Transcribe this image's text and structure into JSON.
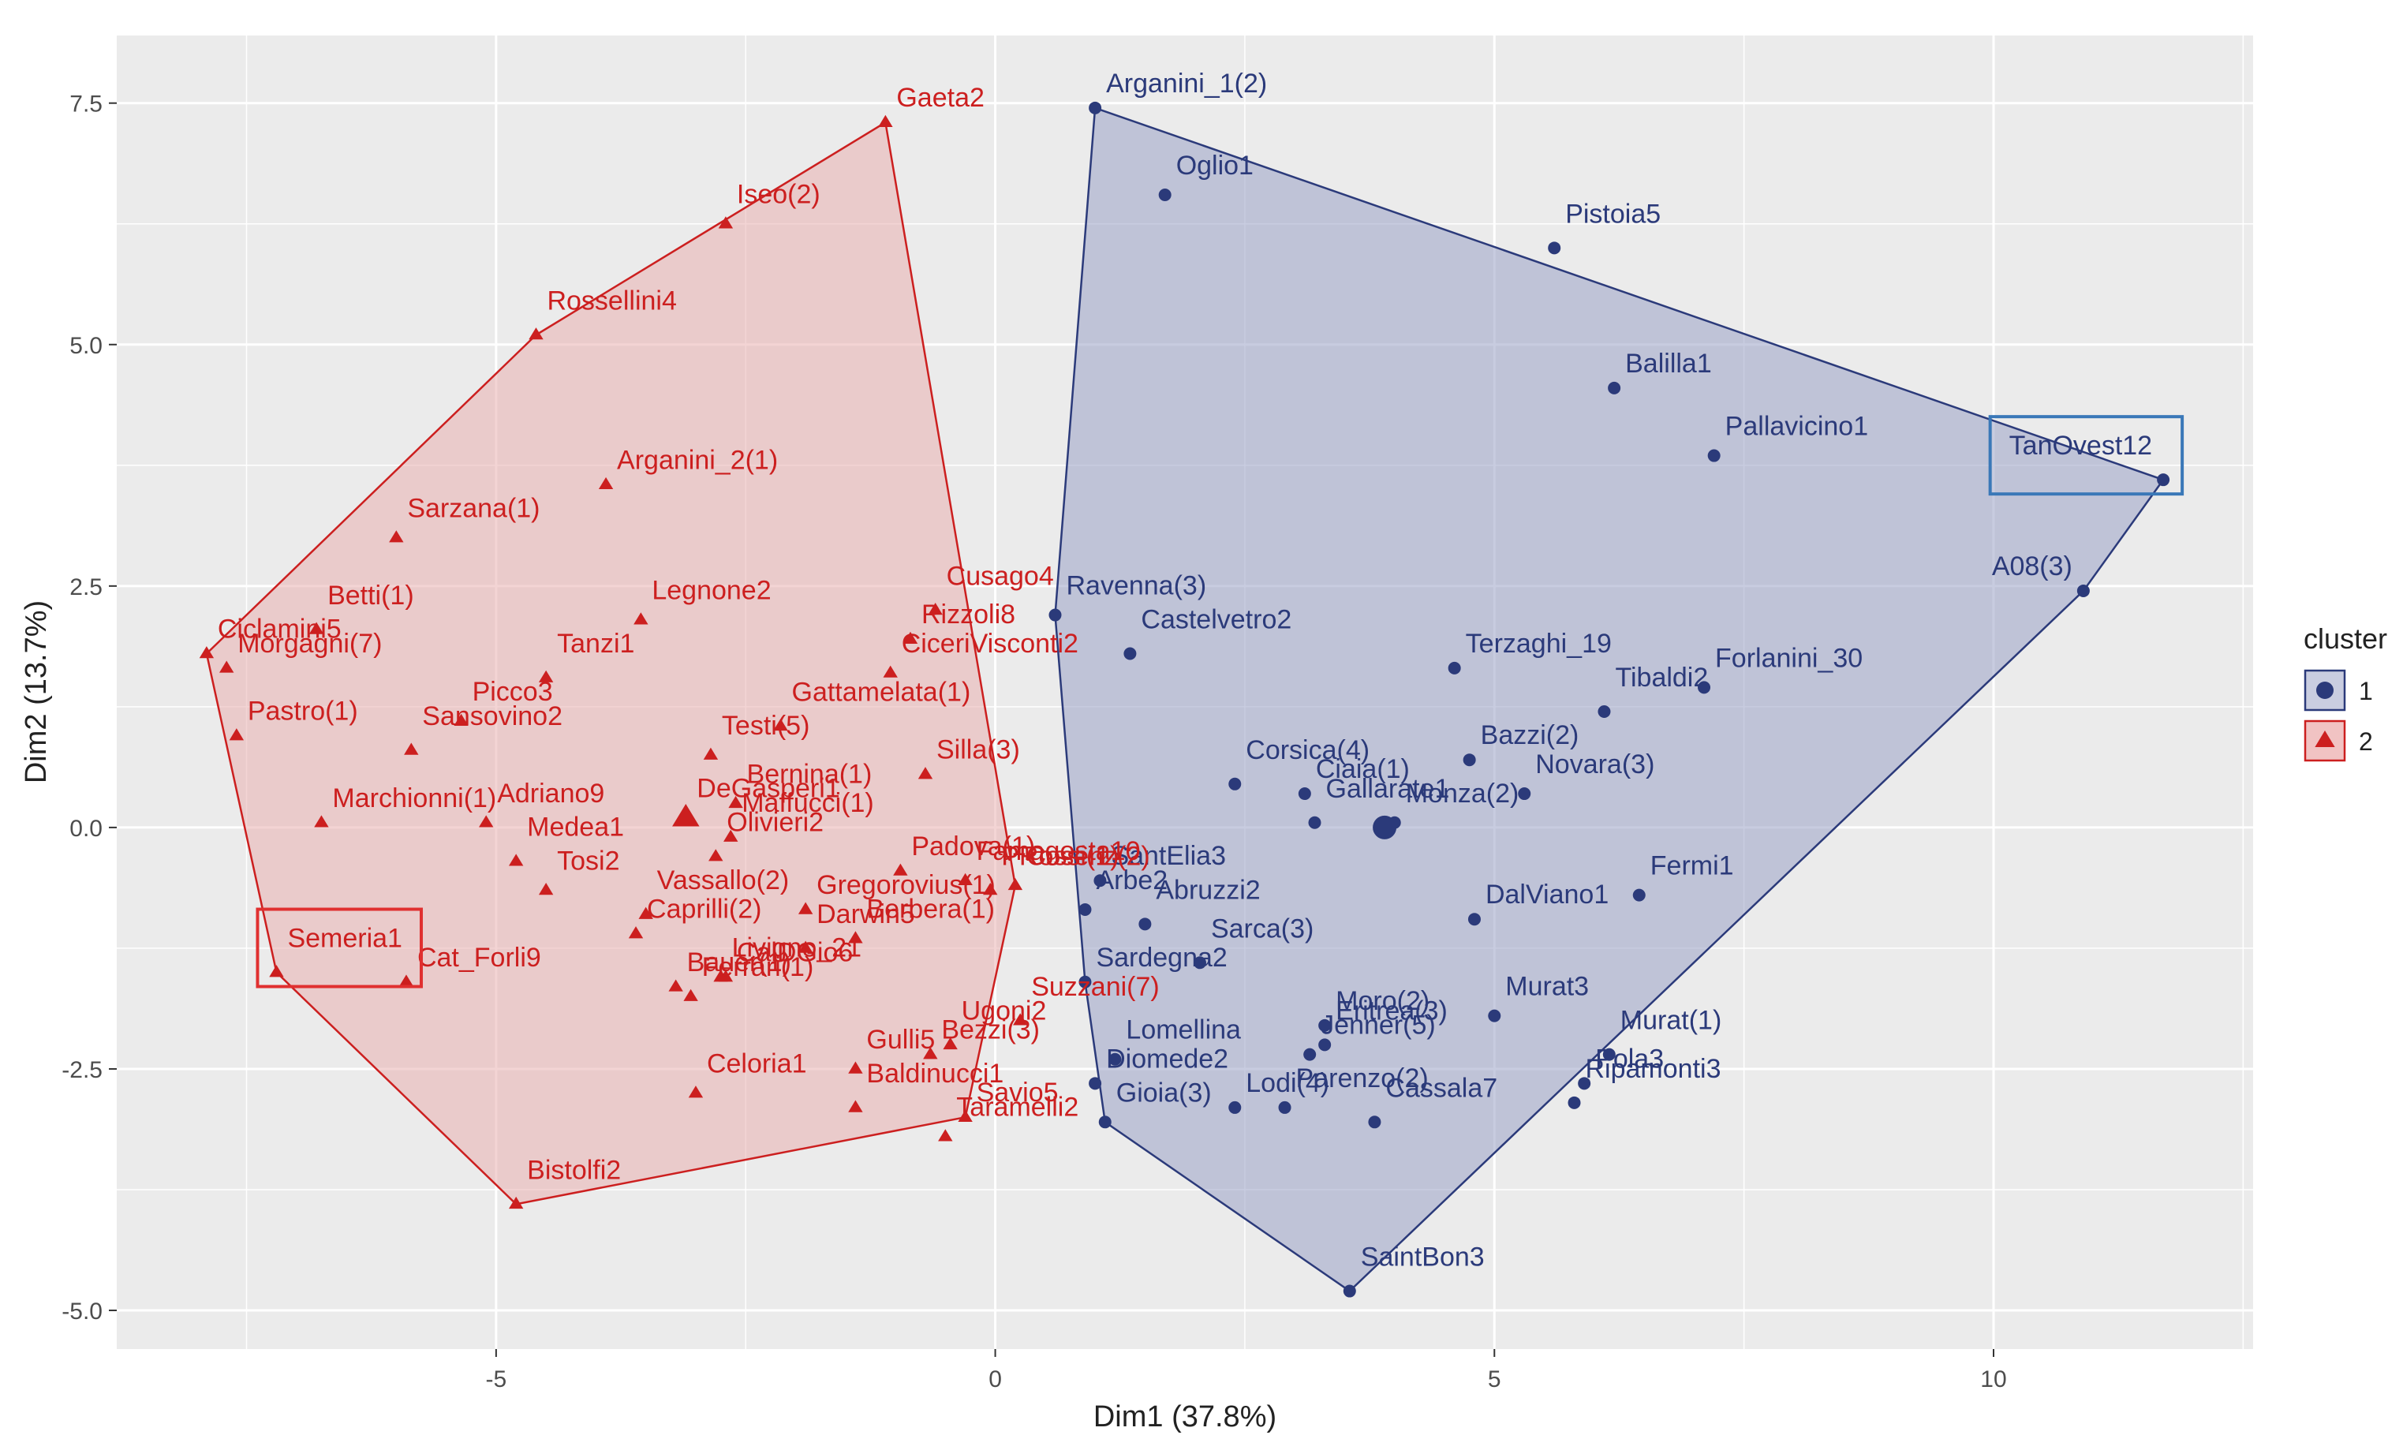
{
  "chart_data": {
    "type": "scatter",
    "xlabel": "Dim1 (37.8%)",
    "ylabel": "Dim2 (13.7%)",
    "xlim": [
      -8.8,
      12.6
    ],
    "ylim": [
      -5.4,
      8.2
    ],
    "x_ticks": [
      -5,
      0,
      5,
      10
    ],
    "x_tick_labels": [
      "-5",
      "0",
      "5",
      "10"
    ],
    "y_ticks": [
      -5.0,
      -2.5,
      0.0,
      2.5,
      5.0,
      7.5
    ],
    "y_tick_labels": [
      "-5.0",
      "-2.5",
      "0.0",
      "2.5",
      "5.0",
      "7.5"
    ],
    "grid": true,
    "background": "#ebebeb",
    "legend": {
      "title": "cluster",
      "placement": "right",
      "entries": [
        {
          "label": "1",
          "color": "#2b3a7a",
          "shape": "circle"
        },
        {
          "label": "2",
          "color": "#cc1f1f",
          "shape": "triangle"
        }
      ]
    },
    "series": [
      {
        "name": "1",
        "color": "#2b3a7a",
        "fill": "#9aa3c6",
        "shape": "circle",
        "hull": [
          "Arganini_1(2)",
          "TanOvest12",
          "A08(3)",
          "SaintBon3",
          "Gioia(3)",
          "Sardegna2",
          "Ravenna(3)"
        ],
        "centroid": [
          3.9,
          0.0
        ],
        "points": [
          {
            "label": "Arganini_1(2)",
            "x": 1.0,
            "y": 7.45
          },
          {
            "label": "Oglio1",
            "x": 1.7,
            "y": 6.55
          },
          {
            "label": "Pistoia5",
            "x": 5.6,
            "y": 6.0
          },
          {
            "label": "Balilla1",
            "x": 6.2,
            "y": 4.55
          },
          {
            "label": "Pallavicino1",
            "x": 7.2,
            "y": 3.85
          },
          {
            "label": "TanOvest12",
            "x": 11.7,
            "y": 3.6
          },
          {
            "label": "A08(3)",
            "x": 10.9,
            "y": 2.45
          },
          {
            "label": "Ravenna(3)",
            "x": 0.6,
            "y": 2.2
          },
          {
            "label": "Castelvetro2",
            "x": 1.35,
            "y": 1.8
          },
          {
            "label": "Terzaghi_19",
            "x": 4.6,
            "y": 1.65
          },
          {
            "label": "Forlanini_30",
            "x": 7.1,
            "y": 1.45
          },
          {
            "label": "Tibaldi2",
            "x": 6.1,
            "y": 1.2
          },
          {
            "label": "Bazzi(2)",
            "x": 4.75,
            "y": 0.7
          },
          {
            "label": "Novara(3)",
            "x": 5.3,
            "y": 0.35
          },
          {
            "label": "Corsica(4)",
            "x": 2.4,
            "y": 0.45
          },
          {
            "label": "Ciaia(1)",
            "x": 3.1,
            "y": 0.35
          },
          {
            "label": "Monza(2)",
            "x": 4.0,
            "y": 0.05
          },
          {
            "label": "Gallarate1",
            "x": 3.2,
            "y": 0.05
          },
          {
            "label": "SantElia3",
            "x": 1.05,
            "y": -0.55
          },
          {
            "label": "Arbe2",
            "x": 0.9,
            "y": -0.85
          },
          {
            "label": "Abruzzi2",
            "x": 1.5,
            "y": -1.0
          },
          {
            "label": "DalViano1",
            "x": 4.8,
            "y": -0.95
          },
          {
            "label": "Fermi1",
            "x": 6.45,
            "y": -0.7
          },
          {
            "label": "Sarca(3)",
            "x": 2.05,
            "y": -1.4
          },
          {
            "label": "Moro(2)",
            "x": 3.3,
            "y": -2.05
          },
          {
            "label": "Murat3",
            "x": 5.0,
            "y": -1.95
          },
          {
            "label": "Eritrea(3)",
            "x": 3.3,
            "y": -2.25
          },
          {
            "label": "Sardegna2",
            "x": 0.9,
            "y": -1.6
          },
          {
            "label": "Lomellina",
            "x": 1.2,
            "y": -2.4
          },
          {
            "label": "Murat(1)",
            "x": 6.15,
            "y": -2.35
          },
          {
            "label": "Pola3",
            "x": 5.9,
            "y": -2.65
          },
          {
            "label": "Jenner(5)",
            "x": 3.15,
            "y": -2.35
          },
          {
            "label": "Ripamonti3",
            "x": 5.8,
            "y": -2.85
          },
          {
            "label": "Diomede2",
            "x": 1.0,
            "y": -2.65
          },
          {
            "label": "Gioia(3)",
            "x": 1.1,
            "y": -3.05
          },
          {
            "label": "Cassala7",
            "x": 3.8,
            "y": -3.05
          },
          {
            "label": "Lodi(4)",
            "x": 2.4,
            "y": -2.9
          },
          {
            "label": "Parenzo(2)",
            "x": 2.9,
            "y": -2.9
          },
          {
            "label": "SaintBon3",
            "x": 3.55,
            "y": -4.8
          }
        ]
      },
      {
        "name": "2",
        "color": "#cc1f1f",
        "fill": "#e9b1b1",
        "shape": "triangle",
        "hull": [
          "Gaeta2",
          "Cosenz(2)",
          "Savio5",
          "Bistolfi2",
          "Semeria1",
          "Ciclamini5",
          "Rossellini4"
        ],
        "centroid": [
          -3.1,
          0.1
        ],
        "points": [
          {
            "label": "Gaeta2",
            "x": -1.1,
            "y": 7.3
          },
          {
            "label": "Iseo(2)",
            "x": -2.7,
            "y": 6.25
          },
          {
            "label": "Rossellini4",
            "x": -4.6,
            "y": 5.1
          },
          {
            "label": "Arganini_2(1)",
            "x": -3.9,
            "y": 3.55
          },
          {
            "label": "Sarzana(1)",
            "x": -6.0,
            "y": 3.0
          },
          {
            "label": "Betti(1)",
            "x": -6.8,
            "y": 2.05
          },
          {
            "label": "Ciclamini5",
            "x": -7.9,
            "y": 1.8
          },
          {
            "label": "Legnone2",
            "x": -3.55,
            "y": 2.15
          },
          {
            "label": "Cusago4",
            "x": -0.6,
            "y": 2.25
          },
          {
            "label": "Rizzoli8",
            "x": -0.85,
            "y": 1.95
          },
          {
            "label": "CiceriVisconti2",
            "x": -1.05,
            "y": 1.6
          },
          {
            "label": "Tanzi1",
            "x": -4.5,
            "y": 1.55
          },
          {
            "label": "Morgagni(7)",
            "x": -7.7,
            "y": 1.65
          },
          {
            "label": "Picco3",
            "x": -5.35,
            "y": 1.1
          },
          {
            "label": "Gattamelata(1)",
            "x": -2.15,
            "y": 1.05
          },
          {
            "label": "Pastro(1)",
            "x": -7.6,
            "y": 0.95
          },
          {
            "label": "Testi(5)",
            "x": -2.85,
            "y": 0.75
          },
          {
            "label": "Sansovino2",
            "x": -5.85,
            "y": 0.8
          },
          {
            "label": "Silla(3)",
            "x": -0.7,
            "y": 0.55
          },
          {
            "label": "Bernina(1)",
            "x": -2.6,
            "y": 0.25
          },
          {
            "label": "Maffucci(1)",
            "x": -2.65,
            "y": -0.1
          },
          {
            "label": "Marchionni(1)",
            "x": -6.75,
            "y": 0.05
          },
          {
            "label": "Adriano9",
            "x": -5.1,
            "y": 0.05
          },
          {
            "label": "Olivieri2",
            "x": -2.8,
            "y": -0.3
          },
          {
            "label": "DeGasperi1",
            "x": -3.1,
            "y": 0.15
          },
          {
            "label": "Cosenz(2)",
            "x": 0.2,
            "y": -0.6
          },
          {
            "label": "Medea1",
            "x": -4.8,
            "y": -0.35
          },
          {
            "label": "Padova(1)",
            "x": -0.95,
            "y": -0.45
          },
          {
            "label": "Tosi2",
            "x": -4.5,
            "y": -0.65
          },
          {
            "label": "Vassallo(2)",
            "x": -3.5,
            "y": -0.9
          },
          {
            "label": "Gregorovius(1)",
            "x": -1.9,
            "y": -0.85
          },
          {
            "label": "Famagosta10",
            "x": -0.3,
            "y": -0.55
          },
          {
            "label": "PRossi(1)",
            "x": -0.05,
            "y": -0.65
          },
          {
            "label": "Caprilli(2)",
            "x": -3.6,
            "y": -1.1
          },
          {
            "label": "Berbera(1)",
            "x": -1.4,
            "y": -1.15
          },
          {
            "label": "Semeria1",
            "x": -7.2,
            "y": -1.5
          },
          {
            "label": "Cat_Forli9",
            "x": -5.9,
            "y": -1.6
          },
          {
            "label": "Livigno_21",
            "x": -2.75,
            "y": -1.55
          },
          {
            "label": "Darwin5",
            "x": -1.9,
            "y": -1.25
          },
          {
            "label": "Bauer(1)",
            "x": -3.2,
            "y": -1.65
          },
          {
            "label": "Ferrari(1)",
            "x": -3.05,
            "y": -1.75
          },
          {
            "label": "Suzzani(7)",
            "x": 0.25,
            "y": -2.0
          },
          {
            "label": "CalDGio6",
            "x": -2.7,
            "y": -1.55
          },
          {
            "label": "Gulli5",
            "x": -1.4,
            "y": -2.5
          },
          {
            "label": "Ugoni2",
            "x": -0.45,
            "y": -2.25
          },
          {
            "label": "Bezzi(3)",
            "x": -0.65,
            "y": -2.35
          },
          {
            "label": "Celoria1",
            "x": -3.0,
            "y": -2.75
          },
          {
            "label": "Baldinucci1",
            "x": -1.4,
            "y": -2.9
          },
          {
            "label": "Savio5",
            "x": -0.3,
            "y": -3.0
          },
          {
            "label": "Taramelli2",
            "x": -0.5,
            "y": -3.2
          },
          {
            "label": "Bistolfi2",
            "x": -4.8,
            "y": -3.9
          }
        ]
      }
    ],
    "highlights": [
      {
        "label": "Semeria1",
        "color": "#e03030"
      },
      {
        "label": "TanOvest12",
        "color": "#3a78b8"
      }
    ]
  }
}
